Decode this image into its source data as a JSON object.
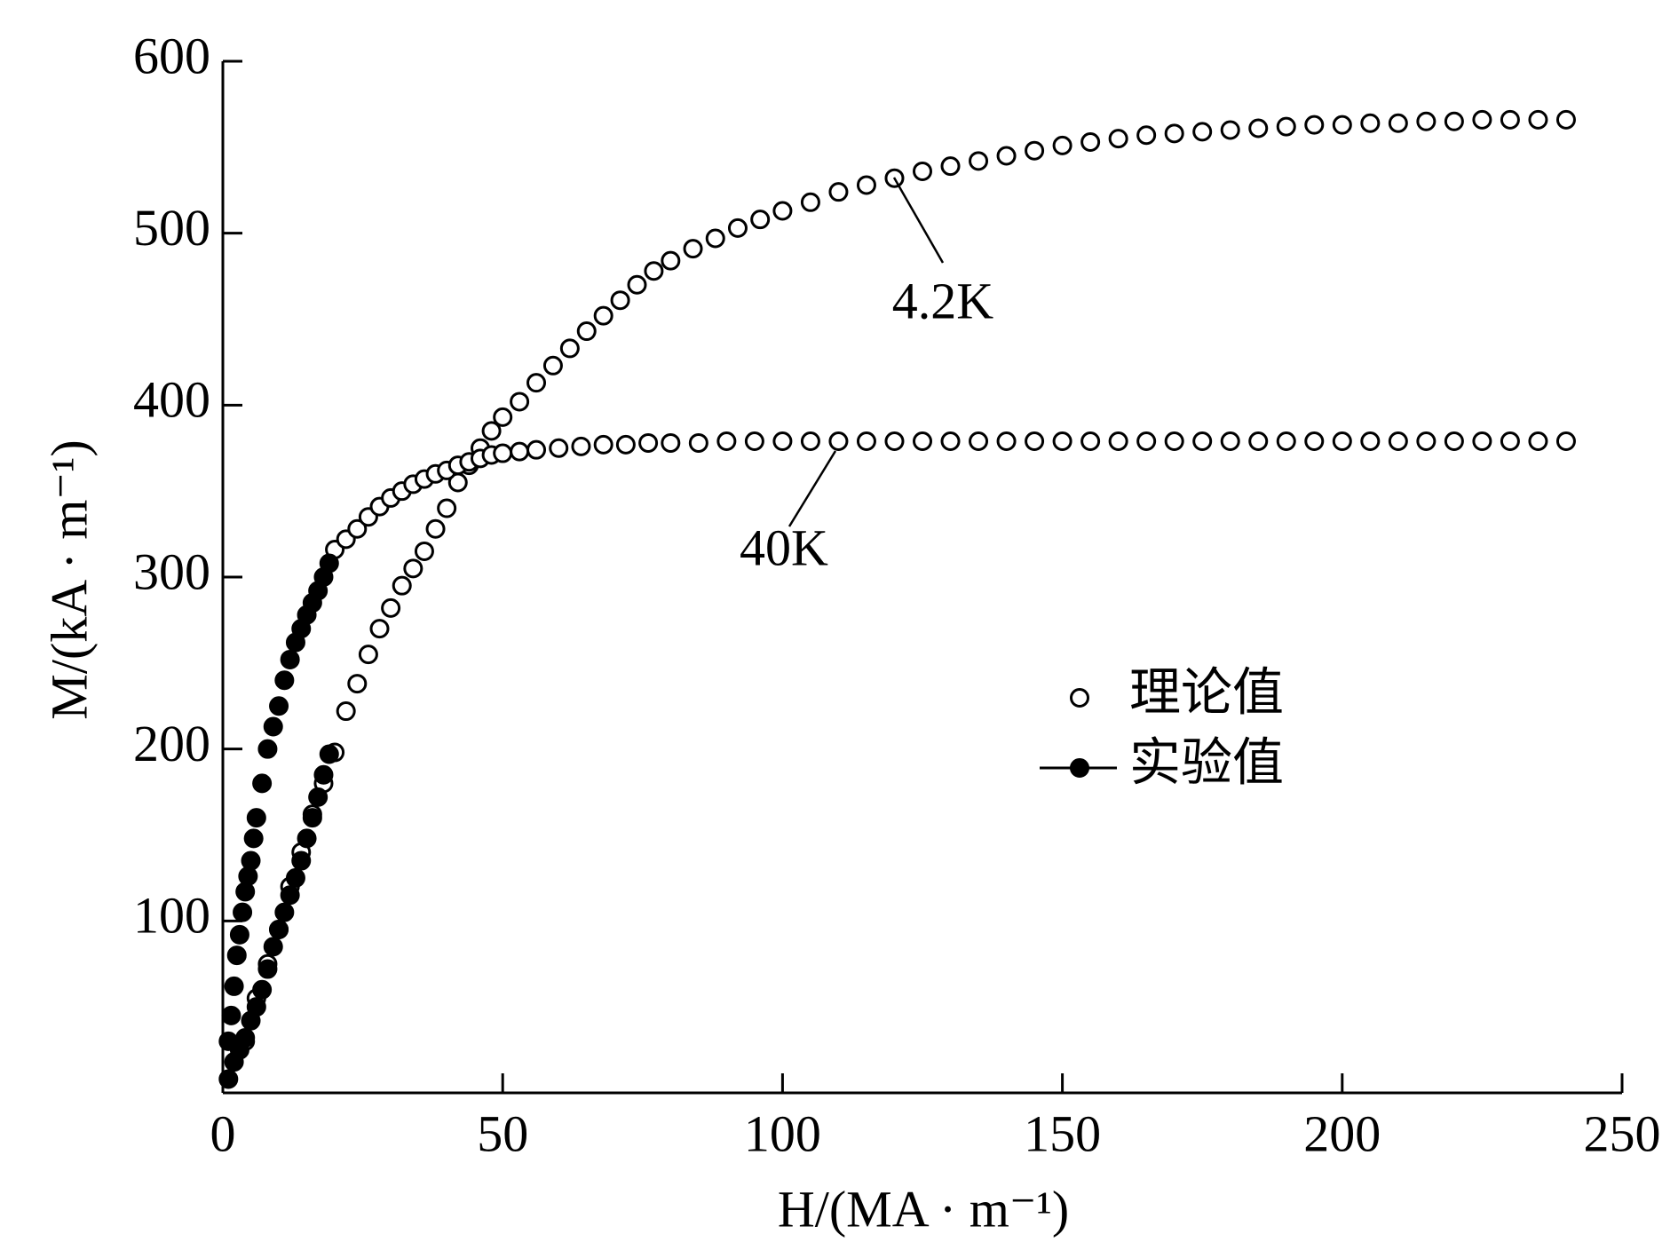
{
  "chart_data": {
    "type": "scatter",
    "xlabel": "H/(MA · m⁻¹)",
    "ylabel": "M/(kA · m⁻¹)",
    "xlim": [
      0,
      250
    ],
    "xticks": [
      0,
      50,
      100,
      150,
      200,
      250
    ],
    "ylim": [
      0,
      600
    ],
    "yticks": [
      100,
      200,
      300,
      400,
      500,
      600
    ],
    "legend": "center",
    "series": [
      {
        "name": "理论值",
        "marker": "open",
        "color": "#000000",
        "curves": [
          {
            "label": "4.2K",
            "x": [
              4,
              6,
              8,
              10,
              12,
              14,
              16,
              18,
              20,
              22,
              24,
              26,
              28,
              30,
              32,
              34,
              36,
              38,
              40,
              42,
              44,
              46,
              48,
              50,
              53,
              56,
              59,
              62,
              65,
              68,
              71,
              74,
              77,
              80,
              84,
              88,
              92,
              96,
              100,
              105,
              110,
              115,
              120,
              125,
              130,
              135,
              140,
              145,
              150,
              155,
              160,
              165,
              170,
              175,
              180,
              185,
              190,
              195,
              200,
              205,
              210,
              215,
              220,
              225,
              230,
              235,
              240
            ],
            "values": [
              30,
              55,
              75,
              95,
              120,
              140,
              162,
              180,
              198,
              222,
              238,
              255,
              270,
              282,
              295,
              305,
              315,
              328,
              340,
              355,
              365,
              375,
              385,
              393,
              402,
              413,
              423,
              433,
              443,
              452,
              461,
              470,
              478,
              484,
              491,
              497,
              503,
              508,
              513,
              518,
              524,
              528,
              532,
              536,
              539,
              542,
              545,
              548,
              551,
              553,
              555,
              557,
              558,
              559,
              560,
              561,
              562,
              563,
              563,
              564,
              564,
              565,
              565,
              566,
              566,
              566,
              566
            ]
          },
          {
            "label": "40K",
            "x": [
              20,
              22,
              24,
              26,
              28,
              30,
              32,
              34,
              36,
              38,
              40,
              42,
              44,
              46,
              48,
              50,
              53,
              56,
              60,
              64,
              68,
              72,
              76,
              80,
              85,
              90,
              95,
              100,
              105,
              110,
              115,
              120,
              125,
              130,
              135,
              140,
              145,
              150,
              155,
              160,
              165,
              170,
              175,
              180,
              185,
              190,
              195,
              200,
              205,
              210,
              215,
              220,
              225,
              230,
              235,
              240
            ],
            "values": [
              316,
              322,
              328,
              335,
              341,
              346,
              350,
              354,
              357,
              360,
              362,
              365,
              367,
              369,
              371,
              372,
              373,
              374,
              375,
              376,
              377,
              377,
              378,
              378,
              378,
              379,
              379,
              379,
              379,
              379,
              379,
              379,
              379,
              379,
              379,
              379,
              379,
              379,
              379,
              379,
              379,
              379,
              379,
              379,
              379,
              379,
              379,
              379,
              379,
              379,
              379,
              379,
              379,
              379,
              379,
              379
            ]
          }
        ]
      },
      {
        "name": "实验值",
        "marker": "filled",
        "color": "#000000",
        "curves": [
          {
            "x": [
              1,
              2,
              3,
              4,
              5,
              6,
              7,
              8,
              9,
              10,
              11,
              12,
              13,
              14,
              15,
              16,
              17,
              18,
              19
            ],
            "values": [
              8,
              18,
              25,
              32,
              42,
              50,
              60,
              72,
              85,
              95,
              105,
              115,
              125,
              135,
              148,
              160,
              172,
              185,
              197
            ]
          },
          {
            "x": [
              1,
              1.5,
              2,
              2.5,
              3,
              3.5,
              4,
              4.5,
              5,
              5.5,
              6,
              7,
              8,
              9,
              10,
              11,
              12,
              13,
              14,
              15,
              16,
              17,
              18,
              19
            ],
            "values": [
              30,
              45,
              62,
              80,
              92,
              105,
              117,
              126,
              135,
              148,
              160,
              180,
              200,
              213,
              225,
              240,
              252,
              262,
              270,
              278,
              285,
              292,
              300,
              308
            ]
          }
        ]
      }
    ]
  }
}
